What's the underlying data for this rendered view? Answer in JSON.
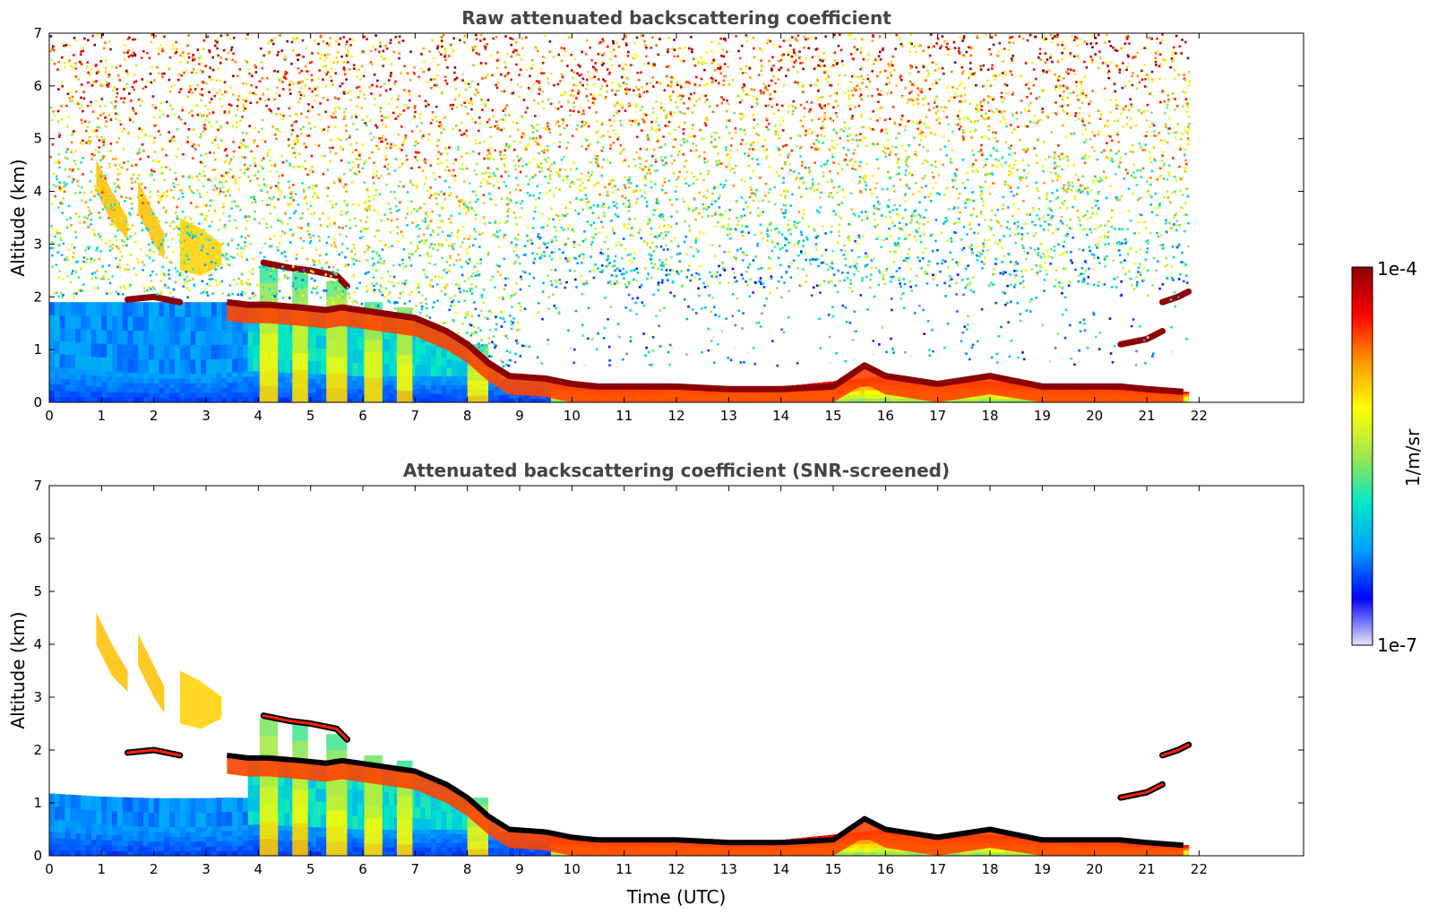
{
  "chart_data": [
    {
      "type": "heatmap",
      "title": "Raw attenuated backscattering coefficient",
      "xlabel": "",
      "ylabel": "Altitude (km)",
      "xlim": [
        0,
        24
      ],
      "ylim": [
        0,
        7
      ],
      "xticks": [
        0,
        1,
        2,
        3,
        4,
        5,
        6,
        7,
        8,
        9,
        10,
        11,
        12,
        13,
        14,
        15,
        16,
        17,
        18,
        19,
        20,
        21,
        22
      ],
      "yticks": [
        0,
        1,
        2,
        3,
        4,
        5,
        6,
        7
      ],
      "data_end_time": 21.8,
      "background_noise": "dense speckle above ~1 km, increasing toward top (red/orange aloft, green/blue lower); noise thins after ~9 UTC",
      "boundary_layer_top_km": {
        "x": [
          0,
          0.5,
          1,
          2,
          3,
          4,
          5,
          6,
          7,
          8,
          8.5,
          9,
          10,
          11,
          12,
          13,
          14,
          15,
          16,
          17,
          18,
          19,
          20,
          21,
          21.8
        ],
        "y": [
          0.7,
          0.65,
          0.6,
          0.55,
          0.55,
          0.6,
          0.55,
          0.5,
          0.5,
          0.5,
          0.45,
          0.45,
          0.35,
          0.3,
          0.35,
          0.3,
          0.3,
          0.4,
          0.5,
          0.4,
          0.4,
          0.35,
          0.3,
          0.25,
          0.2
        ]
      },
      "strong_layer_km": {
        "x": [
          3.4,
          3.8,
          4.2,
          4.8,
          5.3,
          5.6,
          6.3,
          7.0,
          7.6,
          8.0,
          8.4,
          8.8,
          9.5,
          10.0,
          10.5,
          11,
          12,
          13,
          14,
          15,
          15.6,
          16,
          17,
          18,
          19,
          20,
          20.5,
          21,
          21.7
        ],
        "y": [
          1.9,
          1.85,
          1.85,
          1.8,
          1.75,
          1.8,
          1.7,
          1.6,
          1.35,
          1.1,
          0.75,
          0.5,
          0.45,
          0.35,
          0.3,
          0.3,
          0.3,
          0.25,
          0.25,
          0.3,
          0.7,
          0.5,
          0.35,
          0.5,
          0.3,
          0.3,
          0.3,
          0.25,
          0.2
        ]
      },
      "elevated_layers_km": [
        {
          "x": [
            4.1,
            4.6,
            5.0,
            5.5,
            5.7
          ],
          "y": [
            2.65,
            2.55,
            2.5,
            2.4,
            2.2
          ]
        },
        {
          "x": [
            1.5,
            2.0,
            2.5
          ],
          "y": [
            1.95,
            2.0,
            1.9
          ]
        },
        {
          "x": [
            20.5,
            21.0,
            21.3
          ],
          "y": [
            1.1,
            1.2,
            1.35
          ]
        },
        {
          "x": [
            21.3,
            21.6,
            21.8
          ],
          "y": [
            1.9,
            2.0,
            2.1
          ]
        }
      ],
      "aerosol_plumes": [
        {
          "x": [
            0.9,
            1.2,
            1.5
          ],
          "y_top": [
            4.6,
            4.0,
            3.5
          ],
          "y_bottom": [
            4.0,
            3.4,
            3.1
          ],
          "level": 0.7
        },
        {
          "x": [
            1.7,
            2.0,
            2.2
          ],
          "y_top": [
            4.2,
            3.6,
            3.2
          ],
          "y_bottom": [
            3.6,
            3.0,
            2.7
          ],
          "level": 0.7
        },
        {
          "x": [
            2.5,
            2.9,
            3.3
          ],
          "y_top": [
            3.5,
            3.3,
            3.0
          ],
          "y_bottom": [
            2.5,
            2.4,
            2.6
          ],
          "level": 0.68
        }
      ],
      "fall_streaks": [
        {
          "x": 4.2,
          "width": 0.35,
          "top_km": 2.6
        },
        {
          "x": 4.8,
          "width": 0.3,
          "top_km": 2.5
        },
        {
          "x": 5.5,
          "width": 0.4,
          "top_km": 2.3
        },
        {
          "x": 6.2,
          "width": 0.35,
          "top_km": 1.9
        },
        {
          "x": 6.8,
          "width": 0.3,
          "top_km": 1.8
        },
        {
          "x": 8.2,
          "width": 0.4,
          "top_km": 1.1
        }
      ]
    },
    {
      "type": "heatmap",
      "title": "Attenuated backscattering coefficient (SNR-screened)",
      "xlabel": "Time (UTC)",
      "ylabel": "Altitude (km)",
      "xlim": [
        0,
        24
      ],
      "ylim": [
        0,
        7
      ],
      "xticks": [
        0,
        1,
        2,
        3,
        4,
        5,
        6,
        7,
        8,
        9,
        10,
        11,
        12,
        13,
        14,
        15,
        16,
        17,
        18,
        19,
        20,
        21,
        22
      ],
      "yticks": [
        0,
        1,
        2,
        3,
        4,
        5,
        6,
        7
      ],
      "data_end_time": 21.8,
      "background_noise": "screened out (white)",
      "layer_top_marking": "black outline along strong layer"
    }
  ],
  "colorbar": {
    "label": "1/m/sr",
    "max_label": "1e-4",
    "min_label": "1e-7",
    "scale": "log",
    "colormap": "jet",
    "stops": [
      "#e6e6f5",
      "#0000ff",
      "#00a0ff",
      "#00e6c8",
      "#a0e650",
      "#ffff00",
      "#ff9600",
      "#ff0000",
      "#8b0000"
    ]
  },
  "axis_color": "#000000",
  "title_color": "#444444"
}
